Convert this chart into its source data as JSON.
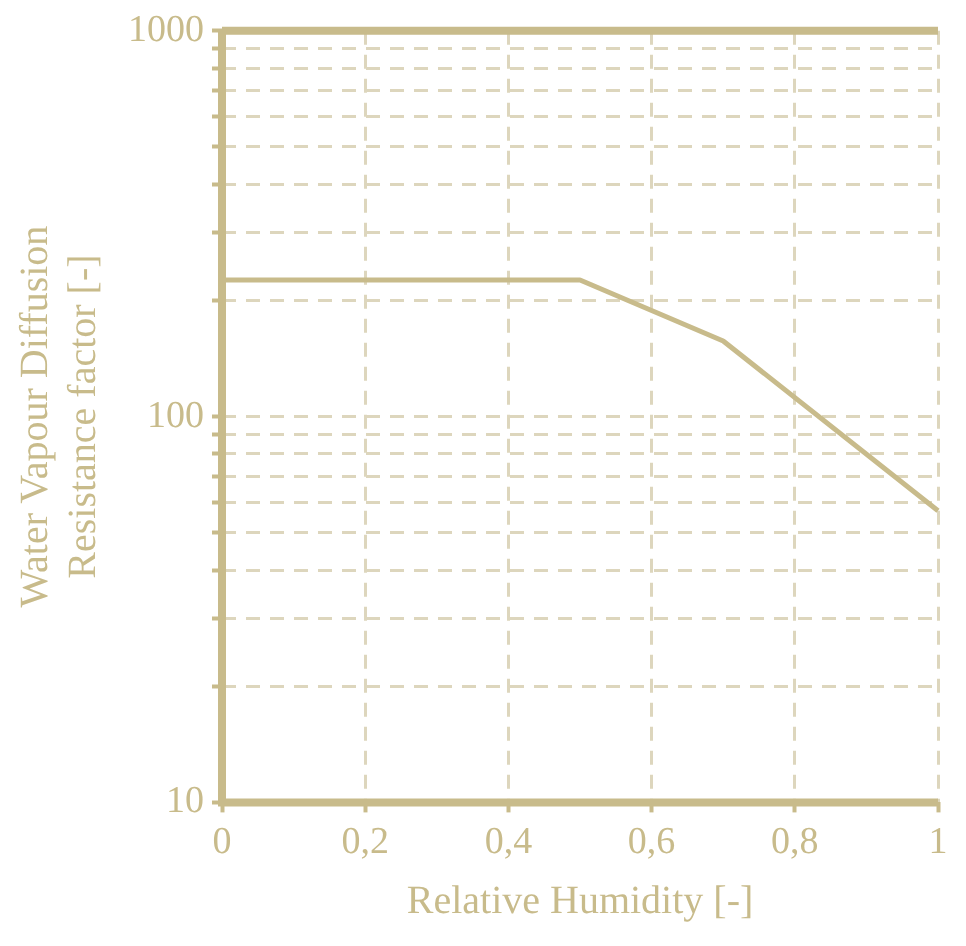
{
  "chart_data": {
    "type": "line",
    "xlabel": "Relative Humidity [-]",
    "ylabel": "Water Vapour Diffusion\nResistance factor [-]",
    "x": [
      0,
      0.5,
      0.7,
      1
    ],
    "series": [
      {
        "color": "#c8bb8b",
        "values": [
          226,
          226,
          157,
          57
        ]
      }
    ],
    "xlim": [
      0,
      1
    ],
    "ylim": [
      10,
      1000
    ],
    "log": "y",
    "grid": true,
    "marker": "none",
    "line_style": "solid",
    "legend": false,
    "xticks": [
      0,
      {
        "value": 0.2,
        "label": "0,2"
      },
      {
        "value": 0.4,
        "label": "0,4"
      },
      {
        "value": 0.6,
        "label": "0,6"
      },
      {
        "value": 0.8,
        "label": "0,8"
      },
      1
    ],
    "yticks": [
      10,
      {
        "value": 20,
        "label": null
      },
      {
        "value": 30,
        "label": null
      },
      {
        "value": 40,
        "label": null
      },
      {
        "value": 50,
        "label": null
      },
      {
        "value": 60,
        "label": null
      },
      {
        "value": 70,
        "label": null
      },
      {
        "value": 80,
        "label": null
      },
      {
        "value": 90,
        "label": null
      },
      100,
      {
        "value": 200,
        "label": null
      },
      {
        "value": 300,
        "label": null
      },
      {
        "value": 400,
        "label": null
      },
      {
        "value": 500,
        "label": null
      },
      {
        "value": 600,
        "label": null
      },
      {
        "value": 700,
        "label": null
      },
      {
        "value": 800,
        "label": null
      },
      {
        "value": 900,
        "label": null
      },
      1000
    ]
  }
}
